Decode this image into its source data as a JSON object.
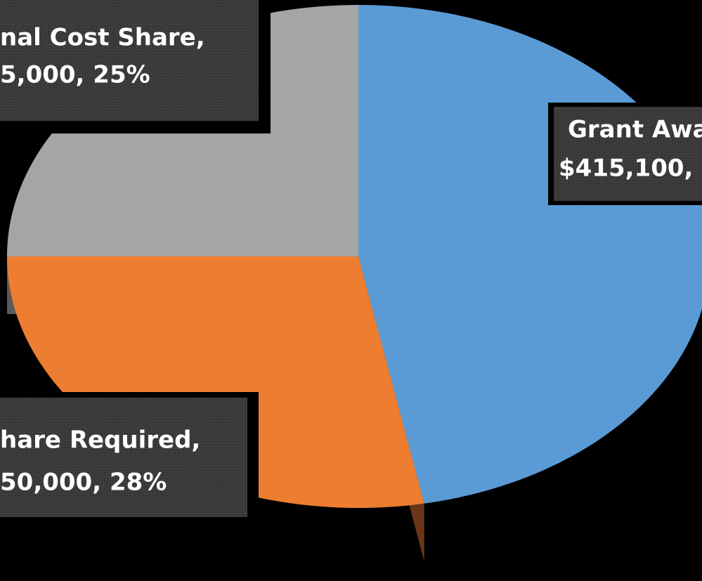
{
  "chart_data": {
    "type": "pie",
    "values": [
      47,
      28,
      25
    ],
    "colors": [
      "#5b9bd5",
      "#ed7d31",
      "#a5a5a5"
    ],
    "side_colors": [
      "#2b4762",
      "#6b3617",
      "#5a5a5a"
    ],
    "data_labels": [
      [
        "Grant Awa",
        "$415,100,"
      ],
      [
        "hare Required,",
        "50,000, 28%"
      ],
      [
        "nal Cost Share,",
        "5,000, 25%"
      ]
    ]
  }
}
